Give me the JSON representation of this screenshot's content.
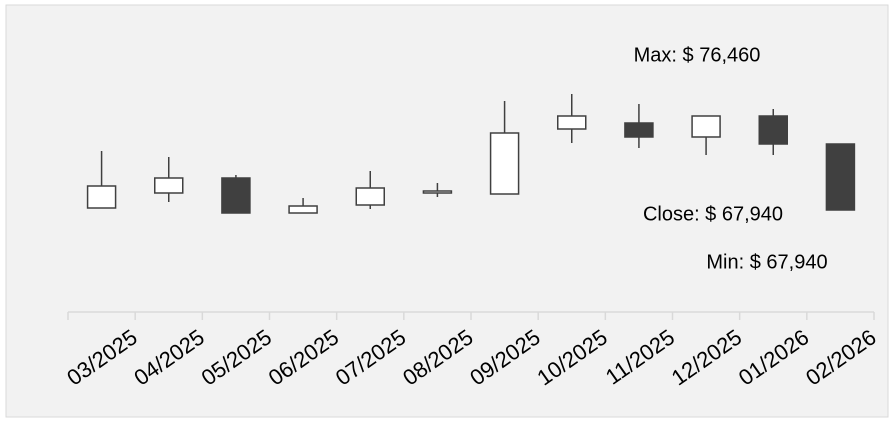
{
  "chart_data": {
    "type": "candlestick",
    "categories": [
      "03/2025",
      "04/2025",
      "05/2025",
      "06/2025",
      "07/2025",
      "08/2025",
      "09/2025",
      "10/2025",
      "11/2025",
      "12/2025",
      "01/2026",
      "02/2026"
    ],
    "open": [
      68198,
      70135,
      72071,
      67553,
      68585,
      70135,
      70005,
      78396,
      79171,
      77364,
      80074,
      76460
    ],
    "high": [
      75556,
      74782,
      72458,
      69489,
      72975,
      71425,
      82011,
      82914,
      81624,
      80074,
      80978,
      76460
    ],
    "low": [
      68198,
      68973,
      67553,
      67553,
      68069,
      69618,
      70005,
      76589,
      75944,
      75040,
      75040,
      67940
    ],
    "close": [
      71038,
      72071,
      67553,
      68456,
      70780,
      70393,
      77880,
      80074,
      77364,
      80074,
      76460,
      67940
    ],
    "up_color": "#ffffff",
    "down_color": "#404040",
    "annotations": [
      "Max: $ 76,460",
      "Close: $ 67,940",
      "Min: $ 67,940"
    ]
  }
}
